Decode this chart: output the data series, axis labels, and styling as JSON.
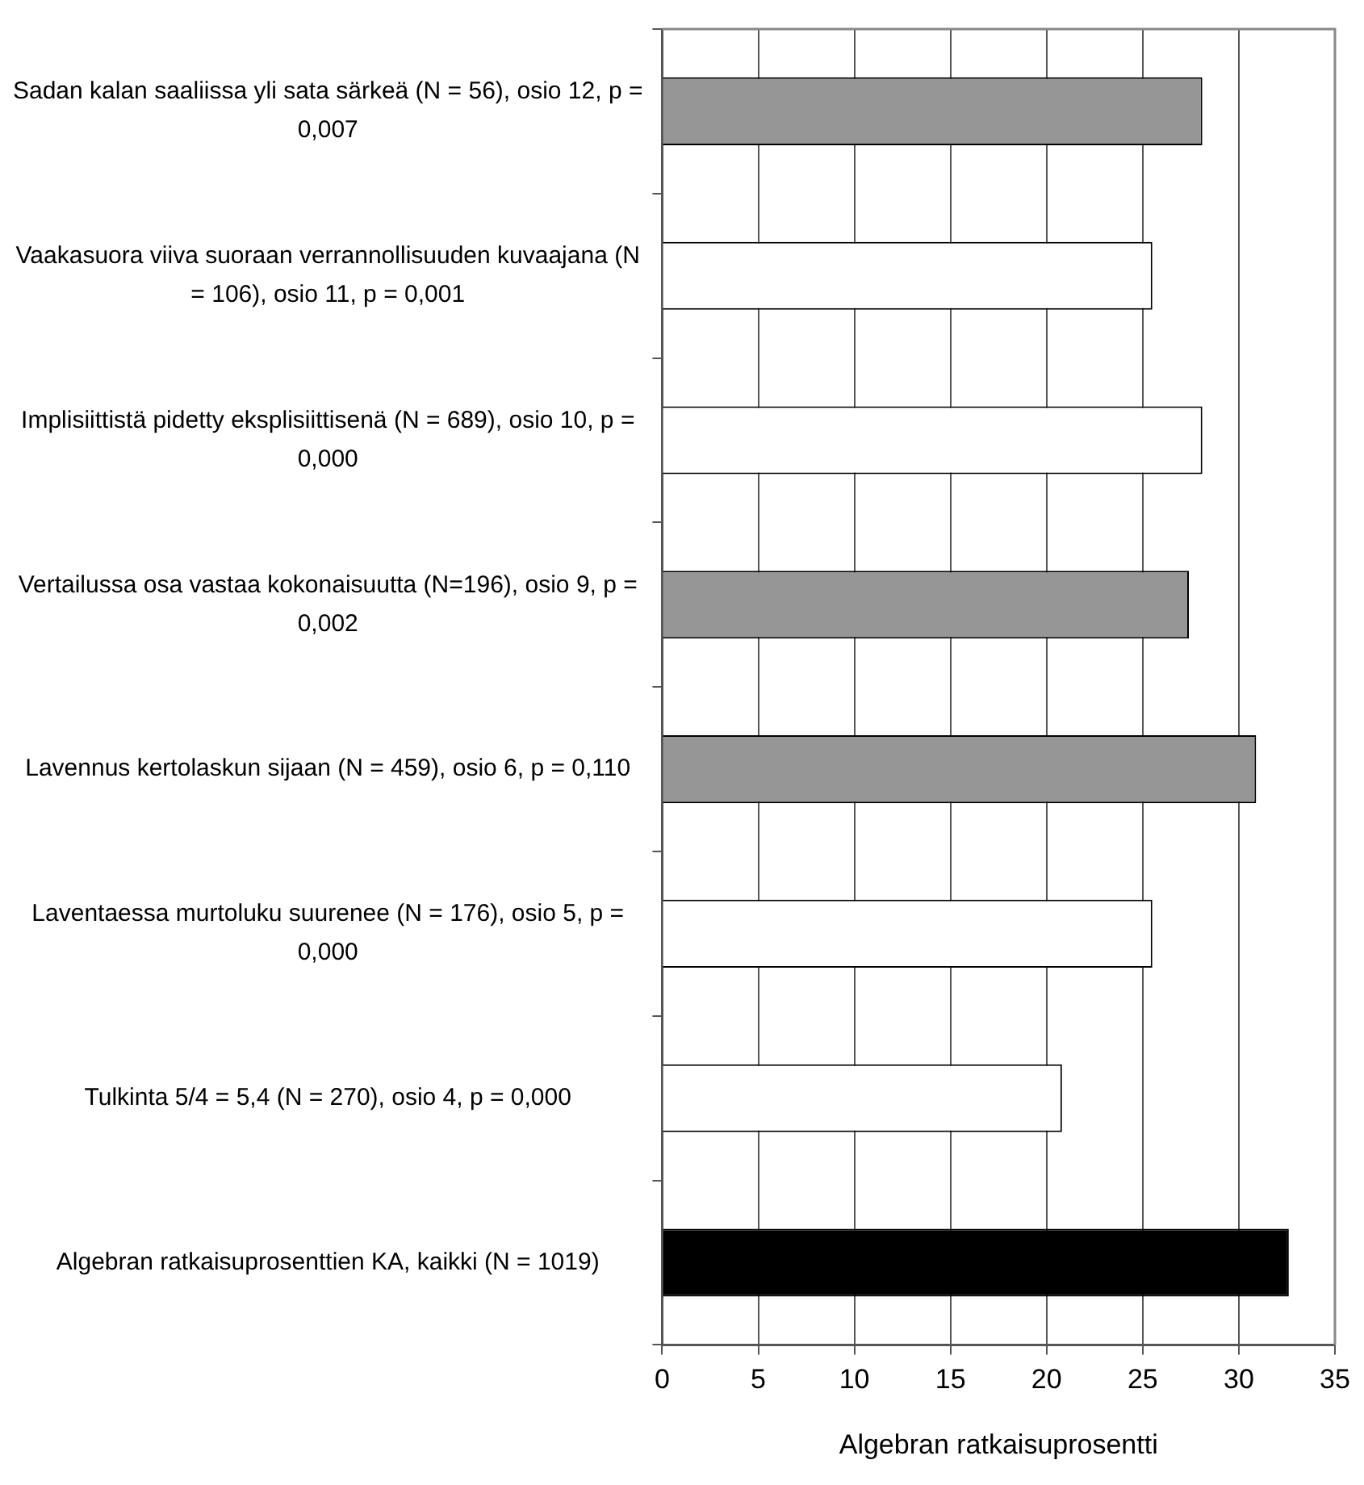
{
  "chart_data": {
    "type": "bar",
    "orientation": "horizontal",
    "xlabel": "Algebran ratkaisuprosentti",
    "categories": [
      "Sadan kalan saaliissa yli sata särkeä (N = 56), osio 12, p = 0,007",
      "Vaakasuora viiva suoraan verrannollisuuden kuvaajana (N = 106), osio 11, p = 0,001",
      "Implisiittistä pidetty eksplisiittisenä (N = 689), osio 10, p = 0,000",
      "Vertailussa osa vastaa kokonaisuutta (N=196), osio 9, p = 0,002",
      "Lavennus kertolaskun sijaan (N = 459), osio 6, p = 0,110",
      "Laventaessa murtoluku suurenee (N = 176), osio 5, p = 0,000",
      "Tulkinta 5/4 = 5,4 (N = 270), osio 4, p = 0,000",
      "Algebran ratkaisuprosenttien KA, kaikki (N = 1019)"
    ],
    "values": [
      28.1,
      25.5,
      28.1,
      27.4,
      30.9,
      25.5,
      20.8,
      32.6
    ],
    "colors": [
      "#969696",
      "#ffffff",
      "#ffffff",
      "#969696",
      "#969696",
      "#ffffff",
      "#ffffff",
      "#000000"
    ],
    "xlim": [
      0,
      35
    ],
    "xticks": [
      0,
      5,
      10,
      15,
      20,
      25,
      30,
      35
    ],
    "grid": "x"
  }
}
